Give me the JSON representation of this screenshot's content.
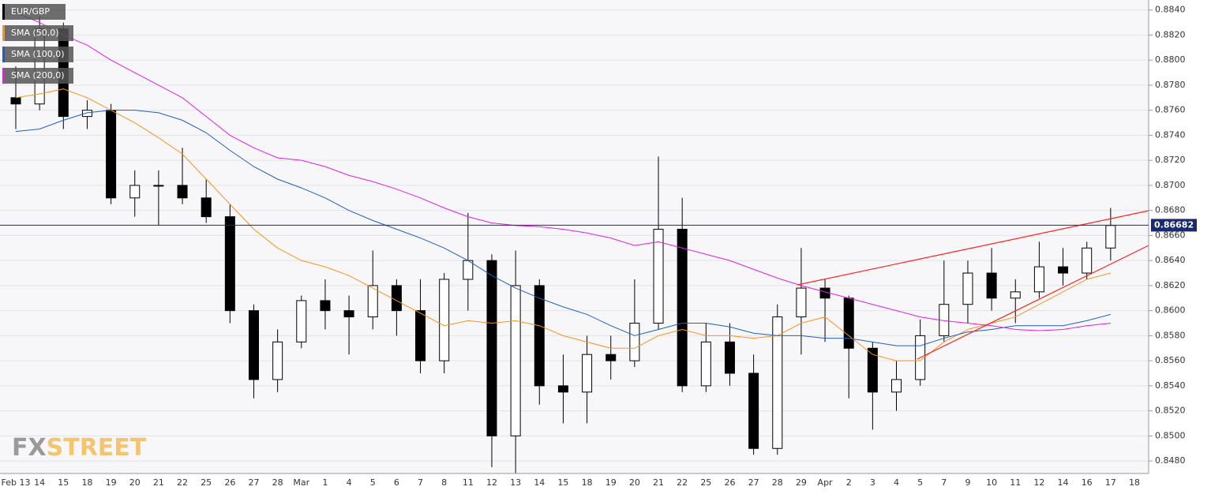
{
  "chart_data": {
    "type": "candlestick",
    "symbol": "EUR/GBP",
    "categories": [
      "Feb 13",
      "14",
      "15",
      "18",
      "19",
      "20",
      "21",
      "22",
      "25",
      "26",
      "27",
      "28",
      "Mar",
      "1",
      "4",
      "5",
      "6",
      "7",
      "8",
      "11",
      "12",
      "13",
      "14",
      "15",
      "18",
      "19",
      "20",
      "21",
      "22",
      "25",
      "26",
      "27",
      "28",
      "29",
      "Apr",
      "2",
      "3",
      "4",
      "5",
      "7",
      "9",
      "10",
      "11",
      "12",
      "14",
      "16",
      "17",
      "18"
    ],
    "open": [
      0.877,
      0.8765,
      0.8825,
      0.8755,
      0.876,
      0.869,
      0.87,
      0.87,
      0.869,
      0.8675,
      0.86,
      0.8545,
      0.8575,
      0.8608,
      0.86,
      0.8595,
      0.862,
      0.86,
      0.856,
      0.8625,
      0.864,
      0.85,
      0.862,
      0.854,
      0.8535,
      0.8565,
      0.856,
      0.859,
      0.8665,
      0.854,
      0.8575,
      0.855,
      0.849,
      0.8595,
      0.8618,
      0.861,
      0.857,
      0.8535,
      0.8545,
      0.858,
      0.8605,
      0.863,
      0.861,
      0.8615,
      0.8635,
      0.863,
      0.865,
      null
    ],
    "high": [
      0.8795,
      0.8835,
      0.883,
      0.8768,
      0.8765,
      0.8712,
      0.8712,
      0.873,
      0.8705,
      0.8685,
      0.8605,
      0.8585,
      0.8612,
      0.8625,
      0.8612,
      0.8648,
      0.8625,
      0.8625,
      0.863,
      0.8678,
      0.8645,
      0.8648,
      0.8625,
      0.8565,
      0.858,
      0.858,
      0.8625,
      0.8723,
      0.869,
      0.859,
      0.859,
      0.8565,
      0.8605,
      0.865,
      0.8625,
      0.8612,
      0.8575,
      0.856,
      0.8593,
      0.864,
      0.864,
      0.865,
      0.8625,
      0.8655,
      0.865,
      0.8655,
      0.8682,
      null
    ],
    "low": [
      0.8745,
      0.876,
      0.8745,
      0.8745,
      0.8685,
      0.8675,
      0.8668,
      0.8685,
      0.867,
      0.859,
      0.853,
      0.8535,
      0.857,
      0.8585,
      0.8565,
      0.8585,
      0.858,
      0.855,
      0.855,
      0.86,
      0.8475,
      0.847,
      0.8525,
      0.851,
      0.851,
      0.8545,
      0.8555,
      0.8585,
      0.8535,
      0.8535,
      0.854,
      0.8485,
      0.8485,
      0.8565,
      0.8575,
      0.853,
      0.8505,
      0.852,
      0.854,
      0.8575,
      0.859,
      0.86,
      0.859,
      0.861,
      0.862,
      0.8625,
      0.864,
      null
    ],
    "close": [
      0.8765,
      0.8825,
      0.8755,
      0.876,
      0.869,
      0.87,
      0.87,
      0.869,
      0.8675,
      0.86,
      0.8545,
      0.8575,
      0.8608,
      0.86,
      0.8595,
      0.862,
      0.86,
      0.856,
      0.8625,
      0.864,
      0.85,
      0.862,
      0.854,
      0.8535,
      0.8565,
      0.856,
      0.859,
      0.8665,
      0.854,
      0.8575,
      0.855,
      0.849,
      0.8595,
      0.8618,
      0.861,
      0.857,
      0.8535,
      0.8545,
      0.858,
      0.8605,
      0.863,
      0.861,
      0.8615,
      0.8635,
      0.863,
      0.865,
      0.8668,
      null
    ],
    "series": [
      {
        "name": "SMA (50,0)",
        "color": "#f7931e",
        "values": [
          0.877,
          0.8773,
          0.8777,
          0.877,
          0.876,
          0.875,
          0.8738,
          0.8725,
          0.8705,
          0.8685,
          0.8665,
          0.865,
          0.864,
          0.8635,
          0.8628,
          0.8618,
          0.8608,
          0.8598,
          0.8588,
          0.8592,
          0.859,
          0.8592,
          0.8588,
          0.858,
          0.8575,
          0.857,
          0.857,
          0.858,
          0.8585,
          0.858,
          0.858,
          0.8578,
          0.858,
          0.859,
          0.8595,
          0.858,
          0.8565,
          0.856,
          0.856,
          0.8575,
          0.8585,
          0.859,
          0.8595,
          0.8605,
          0.8615,
          0.8625,
          0.863,
          null
        ]
      },
      {
        "name": "SMA (100,0)",
        "color": "#1f5fbf",
        "values": [
          0.8743,
          0.8745,
          0.8752,
          0.8758,
          0.876,
          0.876,
          0.8758,
          0.8752,
          0.8742,
          0.8728,
          0.8715,
          0.8705,
          0.8698,
          0.869,
          0.868,
          0.8672,
          0.8665,
          0.8658,
          0.865,
          0.864,
          0.8628,
          0.8618,
          0.861,
          0.8603,
          0.8597,
          0.8588,
          0.858,
          0.8585,
          0.859,
          0.859,
          0.8587,
          0.8582,
          0.858,
          0.858,
          0.8578,
          0.8578,
          0.8575,
          0.8572,
          0.8572,
          0.8578,
          0.8583,
          0.8585,
          0.8588,
          0.8588,
          0.8588,
          0.8592,
          0.8597,
          null
        ]
      },
      {
        "name": "SMA (200,0)",
        "color": "#e020e0",
        "values": [
          0.8838,
          0.883,
          0.882,
          0.8812,
          0.88,
          0.879,
          0.878,
          0.877,
          0.8755,
          0.874,
          0.873,
          0.8722,
          0.872,
          0.8715,
          0.8708,
          0.8703,
          0.8697,
          0.869,
          0.8682,
          0.8675,
          0.867,
          0.8668,
          0.8667,
          0.8665,
          0.8662,
          0.8658,
          0.8652,
          0.8655,
          0.865,
          0.8645,
          0.864,
          0.8633,
          0.8626,
          0.862,
          0.8615,
          0.861,
          0.8605,
          0.86,
          0.8595,
          0.8592,
          0.859,
          0.8588,
          0.8585,
          0.8584,
          0.8585,
          0.8588,
          0.859,
          null
        ]
      }
    ],
    "last_price": 0.86682,
    "ylim": [
      0.847,
      0.8848
    ],
    "yticks": [
      {
        "value": 0.848,
        "label": "0.8480"
      },
      {
        "value": 0.85,
        "label": "0.8500"
      },
      {
        "value": 0.852,
        "label": "0.8520"
      },
      {
        "value": 0.854,
        "label": "0.8540"
      },
      {
        "value": 0.856,
        "label": "0.8560"
      },
      {
        "value": 0.858,
        "label": "0.8580"
      },
      {
        "value": 0.86,
        "label": "0.8600"
      },
      {
        "value": 0.862,
        "label": "0.8620"
      },
      {
        "value": 0.864,
        "label": "0.8640"
      },
      {
        "value": 0.866,
        "label": "0.8660"
      },
      {
        "value": 0.868,
        "label": "0.8680"
      },
      {
        "value": 0.87,
        "label": "0.8700"
      },
      {
        "value": 0.872,
        "label": "0.8720"
      },
      {
        "value": 0.874,
        "label": "0.8740"
      },
      {
        "value": 0.876,
        "label": "0.8760"
      },
      {
        "value": 0.878,
        "label": "0.8780"
      },
      {
        "value": 0.88,
        "label": "0.8800"
      },
      {
        "value": 0.882,
        "label": "0.8820"
      },
      {
        "value": 0.884,
        "label": "0.8840"
      }
    ],
    "grid": true,
    "watermark": [
      "FX",
      "STREET"
    ]
  }
}
